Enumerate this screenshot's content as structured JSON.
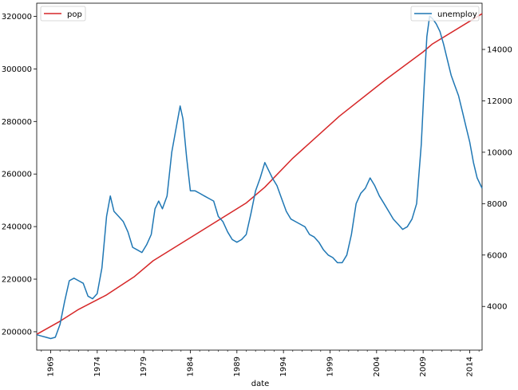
{
  "chart_data": {
    "type": "line",
    "title": "",
    "xlabel": "date",
    "ylabel_left": "",
    "ylabel_right": "",
    "xlim": [
      1967.5,
      2015.33
    ],
    "x_tick_years": [
      1969,
      1974,
      1979,
      1984,
      1989,
      1994,
      1999,
      2004,
      2009,
      2014
    ],
    "x_tick_labels": [
      "1969",
      "1974",
      "1979",
      "1984",
      "1989",
      "1994",
      "1999",
      "2004",
      "2009",
      "2014"
    ],
    "ylim_left": [
      193000,
      325000
    ],
    "yticks_left": [
      200000,
      220000,
      240000,
      260000,
      280000,
      300000,
      320000
    ],
    "yticks_left_labels": [
      "200000",
      "220000",
      "240000",
      "260000",
      "280000",
      "300000",
      "320000"
    ],
    "ylim_right": [
      2300,
      15800
    ],
    "yticks_right": [
      4000,
      6000,
      8000,
      10000,
      12000,
      14000
    ],
    "yticks_right_labels": [
      "4000",
      "6000",
      "8000",
      "10000",
      "12000",
      "14000"
    ],
    "grid": false,
    "legend_left": {
      "placement": "upper-left",
      "label": "pop"
    },
    "legend_right": {
      "placement": "upper-right",
      "label": "unemploy"
    },
    "series": [
      {
        "name": "pop",
        "axis": "left",
        "color": "#d62728",
        "x": [
          1967.5,
          1970,
          1972,
          1975,
          1978,
          1980,
          1985,
          1990,
          1992,
          1995,
          2000,
          2005,
          2009,
          2010,
          2015.33
        ],
        "y": [
          199000,
          204000,
          208500,
          214000,
          221000,
          227000,
          238000,
          249000,
          255000,
          266000,
          282000,
          296000,
          306500,
          309500,
          321000
        ]
      },
      {
        "name": "unemploy",
        "axis": "right",
        "color": "#1f77b4",
        "x": [
          1967.5,
          1968.0,
          1968.5,
          1969.0,
          1969.5,
          1970.0,
          1970.5,
          1971.0,
          1971.5,
          1972.0,
          1972.5,
          1973.0,
          1973.5,
          1974.0,
          1974.5,
          1975.0,
          1975.4,
          1975.8,
          1976.3,
          1976.8,
          1977.3,
          1977.8,
          1978.3,
          1978.8,
          1979.3,
          1979.8,
          1980.2,
          1980.6,
          1981.0,
          1981.5,
          1982.0,
          1982.5,
          1982.9,
          1983.2,
          1983.6,
          1984.0,
          1984.5,
          1985.0,
          1985.5,
          1986.0,
          1986.5,
          1987.0,
          1987.5,
          1988.0,
          1988.5,
          1989.0,
          1989.5,
          1990.0,
          1990.5,
          1991.0,
          1991.5,
          1992.0,
          1992.4,
          1992.8,
          1993.3,
          1993.8,
          1994.3,
          1994.8,
          1995.3,
          1995.8,
          1996.3,
          1996.8,
          1997.3,
          1997.8,
          1998.3,
          1998.8,
          1999.3,
          1999.8,
          2000.3,
          2000.8,
          2001.3,
          2001.8,
          2002.3,
          2002.8,
          2003.3,
          2003.8,
          2004.3,
          2004.8,
          2005.3,
          2005.8,
          2006.3,
          2006.8,
          2007.3,
          2007.8,
          2008.3,
          2008.8,
          2009.1,
          2009.4,
          2009.7,
          2010.0,
          2010.4,
          2010.8,
          2011.2,
          2011.6,
          2012.0,
          2012.4,
          2012.8,
          2013.2,
          2013.6,
          2014.0,
          2014.4,
          2014.8,
          2015.33
        ],
        "y": [
          2900,
          2850,
          2800,
          2750,
          2800,
          3300,
          4200,
          5000,
          5100,
          5000,
          4900,
          4400,
          4300,
          4500,
          5500,
          7500,
          8300,
          7700,
          7500,
          7300,
          6900,
          6300,
          6200,
          6100,
          6400,
          6800,
          7800,
          8100,
          7800,
          8300,
          10000,
          11000,
          11800,
          11300,
          9800,
          8500,
          8500,
          8400,
          8300,
          8200,
          8100,
          7500,
          7300,
          6900,
          6600,
          6500,
          6600,
          6800,
          7600,
          8500,
          9000,
          9600,
          9300,
          9000,
          8700,
          8200,
          7700,
          7400,
          7300,
          7200,
          7100,
          6800,
          6700,
          6500,
          6200,
          6000,
          5900,
          5700,
          5700,
          6000,
          6800,
          8000,
          8400,
          8600,
          9000,
          8700,
          8300,
          8000,
          7700,
          7400,
          7200,
          7000,
          7100,
          7400,
          8000,
          10300,
          12500,
          14500,
          15300,
          15200,
          15000,
          14700,
          14200,
          13600,
          13000,
          12600,
          12200,
          11600,
          11000,
          10400,
          9600,
          9000,
          8600
        ]
      }
    ]
  }
}
